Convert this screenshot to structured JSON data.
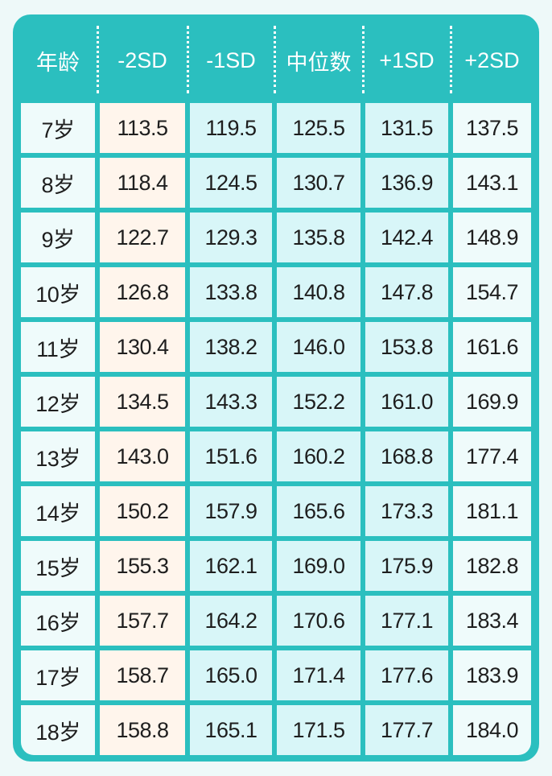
{
  "header": [
    "年龄",
    "-2SD",
    "-1SD",
    "中位数",
    "+1SD",
    "+2SD"
  ],
  "rows": [
    [
      "7岁",
      "113.5",
      "119.5",
      "125.5",
      "131.5",
      "137.5"
    ],
    [
      "8岁",
      "118.4",
      "124.5",
      "130.7",
      "136.9",
      "143.1"
    ],
    [
      "9岁",
      "122.7",
      "129.3",
      "135.8",
      "142.4",
      "148.9"
    ],
    [
      "10岁",
      "126.8",
      "133.8",
      "140.8",
      "147.8",
      "154.7"
    ],
    [
      "11岁",
      "130.4",
      "138.2",
      "146.0",
      "153.8",
      "161.6"
    ],
    [
      "12岁",
      "134.5",
      "143.3",
      "152.2",
      "161.0",
      "169.9"
    ],
    [
      "13岁",
      "143.0",
      "151.6",
      "160.2",
      "168.8",
      "177.4"
    ],
    [
      "14岁",
      "150.2",
      "157.9",
      "165.6",
      "173.3",
      "181.1"
    ],
    [
      "15岁",
      "155.3",
      "162.1",
      "169.0",
      "175.9",
      "182.8"
    ],
    [
      "16岁",
      "157.7",
      "164.2",
      "170.6",
      "177.1",
      "183.4"
    ],
    [
      "17岁",
      "158.7",
      "165.0",
      "171.4",
      "177.6",
      "183.9"
    ],
    [
      "18岁",
      "158.8",
      "165.1",
      "171.5",
      "177.7",
      "184.0"
    ]
  ],
  "colors": {
    "frame": "#2bbfbf",
    "age_col": "#effbfb",
    "minus2sd_col": "#fff5ec",
    "mid_cols": "#d8f6f8"
  }
}
